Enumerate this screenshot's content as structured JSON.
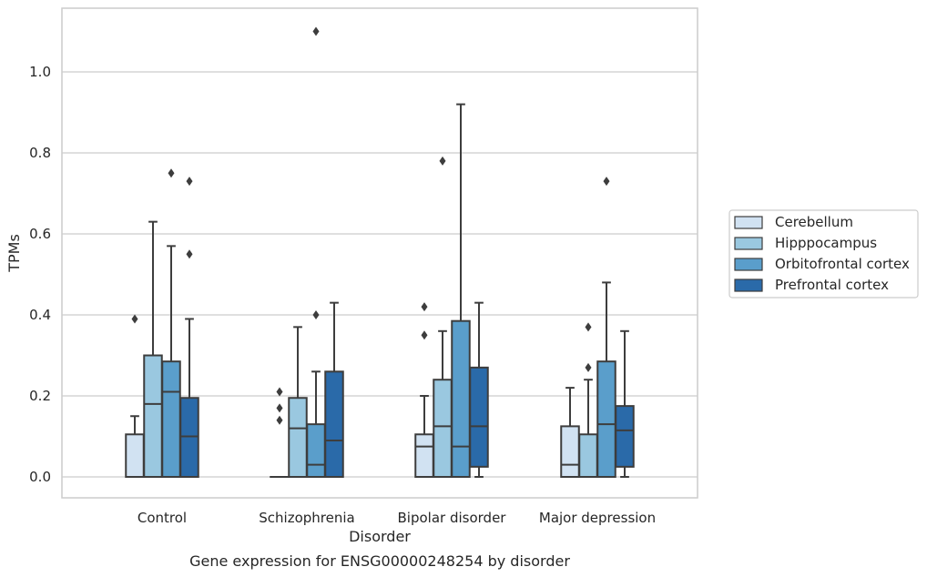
{
  "chart_data": {
    "type": "box",
    "title": "",
    "caption": "Gene expression for ENSG00000248254 by disorder",
    "xlabel": "Disorder",
    "ylabel": "TPMs",
    "ylim": [
      -0.05,
      1.16
    ],
    "yticks": [
      0.0,
      0.2,
      0.4,
      0.6,
      0.8,
      1.0
    ],
    "ytick_labels": [
      "0.0",
      "0.2",
      "0.4",
      "0.6",
      "0.8",
      "1.0"
    ],
    "grid": "horizontal",
    "legend_position": "right",
    "categories": [
      "Control",
      "Schizophrenia",
      "Bipolar disorder",
      "Major depression"
    ],
    "series": [
      {
        "name": "Cerebellum",
        "color": "#d1e2f2",
        "boxes": [
          {
            "q1": 0.0,
            "median": 0.0,
            "q3": 0.105,
            "whisker_low": 0.0,
            "whisker_high": 0.15,
            "outliers": [
              0.39
            ]
          },
          {
            "q1": 0.0,
            "median": 0.0,
            "q3": 0.0,
            "whisker_low": 0.0,
            "whisker_high": 0.0,
            "outliers": [
              0.14,
              0.17,
              0.21
            ]
          },
          {
            "q1": 0.0,
            "median": 0.075,
            "q3": 0.105,
            "whisker_low": 0.0,
            "whisker_high": 0.2,
            "outliers": [
              0.35,
              0.42
            ]
          },
          {
            "q1": 0.0,
            "median": 0.03,
            "q3": 0.125,
            "whisker_low": 0.0,
            "whisker_high": 0.22,
            "outliers": []
          }
        ]
      },
      {
        "name": "Hipppocampus",
        "color": "#9ac8e0",
        "boxes": [
          {
            "q1": 0.0,
            "median": 0.18,
            "q3": 0.3,
            "whisker_low": 0.0,
            "whisker_high": 0.63,
            "outliers": []
          },
          {
            "q1": 0.0,
            "median": 0.12,
            "q3": 0.195,
            "whisker_low": 0.0,
            "whisker_high": 0.37,
            "outliers": []
          },
          {
            "q1": 0.0,
            "median": 0.125,
            "q3": 0.24,
            "whisker_low": 0.0,
            "whisker_high": 0.36,
            "outliers": [
              0.78
            ]
          },
          {
            "q1": 0.0,
            "median": 0.0,
            "q3": 0.105,
            "whisker_low": 0.0,
            "whisker_high": 0.24,
            "outliers": [
              0.27,
              0.37
            ]
          }
        ]
      },
      {
        "name": "Orbitofrontal cortex",
        "color": "#5a9ecb",
        "boxes": [
          {
            "q1": 0.0,
            "median": 0.21,
            "q3": 0.285,
            "whisker_low": 0.0,
            "whisker_high": 0.57,
            "outliers": [
              0.75
            ]
          },
          {
            "q1": 0.0,
            "median": 0.03,
            "q3": 0.13,
            "whisker_low": 0.0,
            "whisker_high": 0.26,
            "outliers": [
              0.4,
              1.1
            ]
          },
          {
            "q1": 0.0,
            "median": 0.075,
            "q3": 0.385,
            "whisker_low": 0.0,
            "whisker_high": 0.92,
            "outliers": []
          },
          {
            "q1": 0.0,
            "median": 0.13,
            "q3": 0.285,
            "whisker_low": 0.0,
            "whisker_high": 0.48,
            "outliers": [
              0.73
            ]
          }
        ]
      },
      {
        "name": "Prefrontal cortex",
        "color": "#2a6aa9",
        "boxes": [
          {
            "q1": 0.0,
            "median": 0.1,
            "q3": 0.195,
            "whisker_low": 0.0,
            "whisker_high": 0.39,
            "outliers": [
              0.55,
              0.73
            ]
          },
          {
            "q1": 0.0,
            "median": 0.09,
            "q3": 0.26,
            "whisker_low": 0.0,
            "whisker_high": 0.43,
            "outliers": []
          },
          {
            "q1": 0.025,
            "median": 0.125,
            "q3": 0.27,
            "whisker_low": 0.0,
            "whisker_high": 0.43,
            "outliers": []
          },
          {
            "q1": 0.025,
            "median": 0.115,
            "q3": 0.175,
            "whisker_low": 0.0,
            "whisker_high": 0.36,
            "outliers": []
          }
        ]
      }
    ],
    "colors": {
      "box_edge": "#3d3d3d",
      "grid": "#cccccc",
      "frame": "#cccccc",
      "legend_frame": "#cccccc"
    }
  }
}
